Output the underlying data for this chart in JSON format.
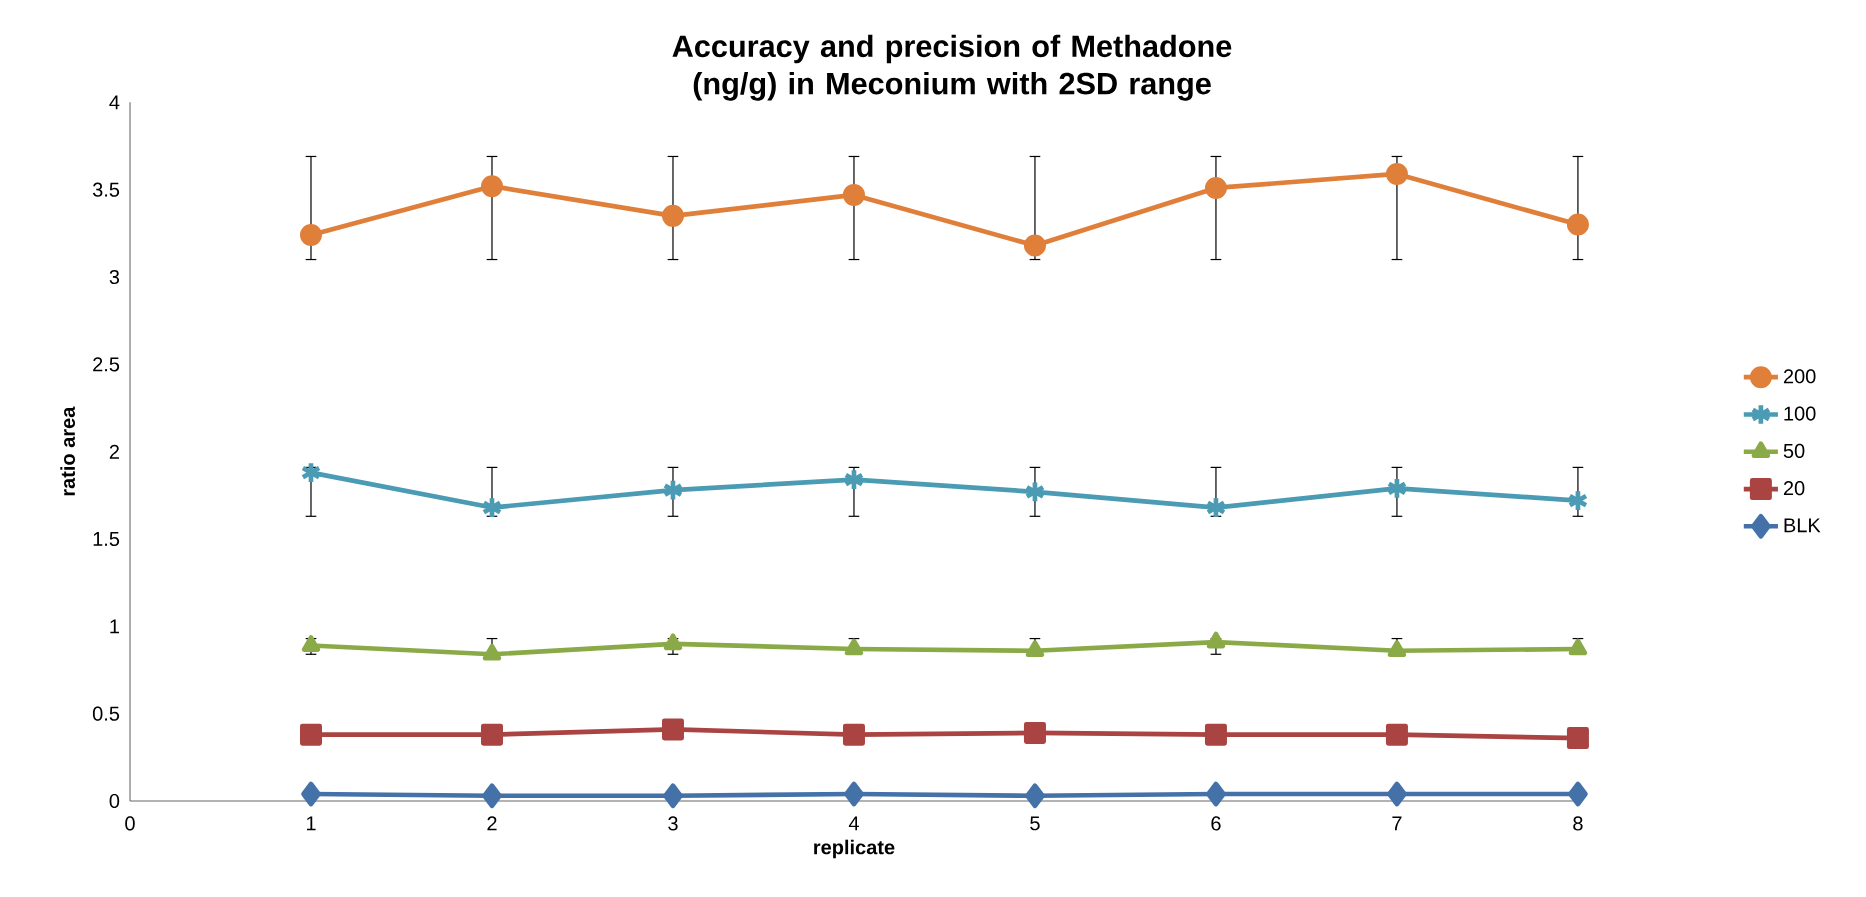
{
  "chart_data": {
    "type": "line",
    "title": "Accuracy and precision of Methadone (ng/g) in Meconium with 2SD range",
    "xlabel": "replicate",
    "ylabel": "ratio area",
    "x": [
      1,
      2,
      3,
      4,
      5,
      6,
      7,
      8
    ],
    "series": [
      {
        "name": "200",
        "color": "#e07f3a",
        "marker": "circle",
        "values": [
          3.24,
          3.52,
          3.35,
          3.47,
          3.18,
          3.51,
          3.59,
          3.3
        ],
        "errors": [
          [
            3.1,
            3.69
          ],
          [
            3.1,
            3.69
          ],
          [
            3.1,
            3.69
          ],
          [
            3.1,
            3.69
          ],
          [
            3.1,
            3.69
          ],
          [
            3.1,
            3.69
          ],
          [
            3.1,
            3.69
          ],
          [
            3.1,
            3.69
          ]
        ]
      },
      {
        "name": "100",
        "color": "#4a9bb3",
        "marker": "cross",
        "values": [
          1.88,
          1.68,
          1.78,
          1.84,
          1.77,
          1.68,
          1.79,
          1.72
        ],
        "errors": [
          [
            1.63,
            1.91
          ],
          [
            1.63,
            1.91
          ],
          [
            1.63,
            1.91
          ],
          [
            1.63,
            1.91
          ],
          [
            1.63,
            1.91
          ],
          [
            1.63,
            1.91
          ],
          [
            1.63,
            1.91
          ],
          [
            1.63,
            1.91
          ]
        ]
      },
      {
        "name": "50",
        "color": "#8aaa48",
        "marker": "triangle",
        "values": [
          0.89,
          0.84,
          0.9,
          0.87,
          0.86,
          0.91,
          0.86,
          0.87
        ],
        "errors": [
          [
            0.84,
            0.93
          ],
          [
            0.84,
            0.93
          ],
          [
            0.84,
            0.93
          ],
          [
            0.84,
            0.93
          ],
          [
            0.84,
            0.93
          ],
          [
            0.84,
            0.93
          ],
          [
            0.84,
            0.93
          ],
          [
            0.84,
            0.93
          ]
        ]
      },
      {
        "name": "20",
        "color": "#a94442",
        "marker": "square",
        "values": [
          0.38,
          0.38,
          0.41,
          0.38,
          0.39,
          0.38,
          0.38,
          0.36
        ]
      },
      {
        "name": "BLK",
        "color": "#4472a8",
        "marker": "diamond",
        "values": [
          0.04,
          0.03,
          0.03,
          0.04,
          0.03,
          0.04,
          0.04,
          0.04
        ]
      }
    ],
    "xlim": [
      0,
      8
    ],
    "xticks": [
      0,
      1,
      2,
      3,
      4,
      5,
      6,
      7,
      8
    ],
    "ylim": [
      0,
      4
    ],
    "yticks": [
      0,
      0.5,
      1,
      1.5,
      2,
      2.5,
      3,
      3.5,
      4
    ],
    "legend": "right",
    "line_style": "solid",
    "grid": false
  }
}
